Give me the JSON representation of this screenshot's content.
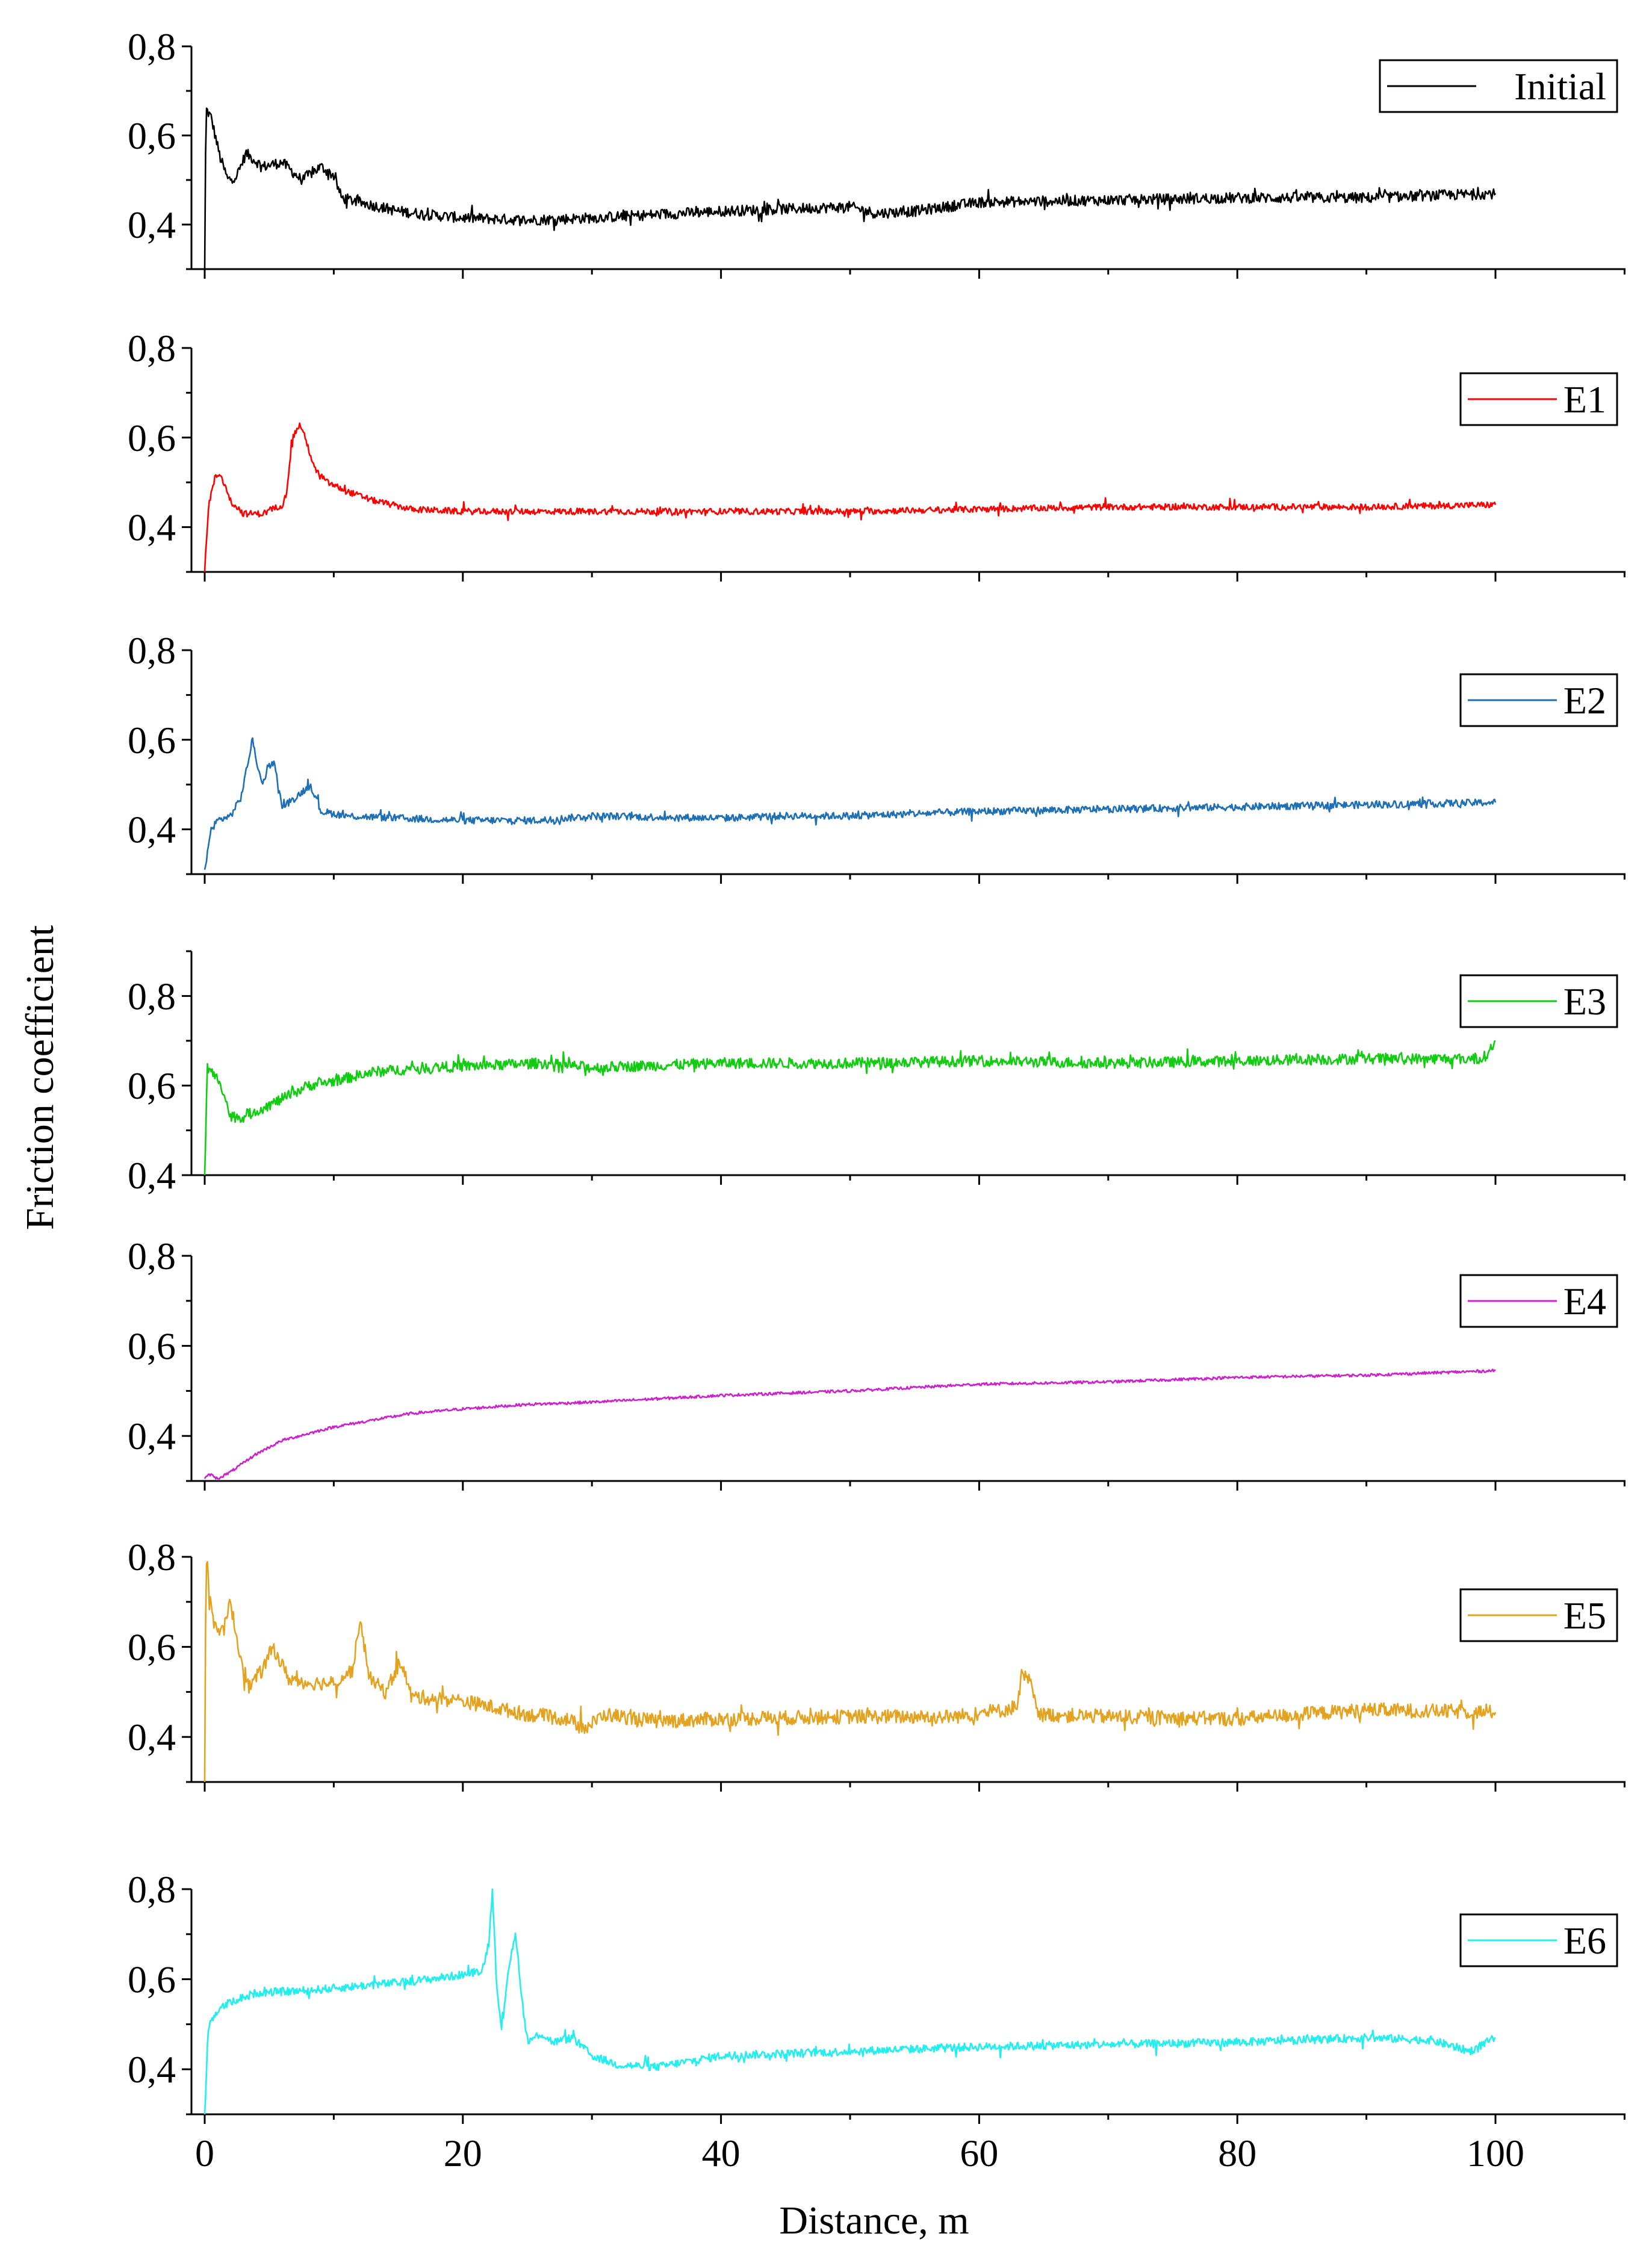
{
  "chart_data": {
    "type": "line",
    "xlabel": "Distance, m",
    "ylabel": "Friction coefficient",
    "xlim": [
      -1,
      110
    ],
    "x_ticks": [
      "0",
      "20",
      "40",
      "60",
      "80",
      "100"
    ],
    "y_tick_labels": [
      "0,4",
      "0,6",
      "0,8"
    ],
    "panels": [
      {
        "legend": "Initial",
        "color": "#000000",
        "ylim": [
          0.3,
          0.8
        ],
        "noise": 0.012,
        "spike_amp": 0.02,
        "points": [
          [
            0,
            0.3
          ],
          [
            0.1,
            0.66
          ],
          [
            0.5,
            0.64
          ],
          [
            1.2,
            0.55
          ],
          [
            1.8,
            0.5
          ],
          [
            2.5,
            0.51
          ],
          [
            3.2,
            0.56
          ],
          [
            4.5,
            0.53
          ],
          [
            6,
            0.54
          ],
          [
            7.5,
            0.5
          ],
          [
            9,
            0.53
          ],
          [
            10,
            0.51
          ],
          [
            10.6,
            0.46
          ],
          [
            12,
            0.45
          ],
          [
            15,
            0.43
          ],
          [
            18,
            0.42
          ],
          [
            20,
            0.415
          ],
          [
            25,
            0.41
          ],
          [
            30,
            0.415
          ],
          [
            40,
            0.43
          ],
          [
            50,
            0.44
          ],
          [
            52,
            0.425
          ],
          [
            55,
            0.43
          ],
          [
            60,
            0.45
          ],
          [
            70,
            0.455
          ],
          [
            80,
            0.46
          ],
          [
            90,
            0.46
          ],
          [
            100,
            0.47
          ]
        ]
      },
      {
        "legend": "E1",
        "color": "#ff0000",
        "ylim": [
          0.3,
          0.8
        ],
        "noise": 0.007,
        "spike_amp": 0.015,
        "points": [
          [
            0,
            0.3
          ],
          [
            0.3,
            0.45
          ],
          [
            0.8,
            0.51
          ],
          [
            1.2,
            0.52
          ],
          [
            2,
            0.46
          ],
          [
            3,
            0.43
          ],
          [
            4.5,
            0.43
          ],
          [
            6,
            0.45
          ],
          [
            6.3,
            0.47
          ],
          [
            6.8,
            0.6
          ],
          [
            7.4,
            0.63
          ],
          [
            8,
            0.58
          ],
          [
            8.5,
            0.53
          ],
          [
            9.5,
            0.5
          ],
          [
            11,
            0.48
          ],
          [
            13,
            0.46
          ],
          [
            16,
            0.44
          ],
          [
            20,
            0.435
          ],
          [
            30,
            0.435
          ],
          [
            40,
            0.435
          ],
          [
            50,
            0.435
          ],
          [
            60,
            0.44
          ],
          [
            70,
            0.445
          ],
          [
            80,
            0.445
          ],
          [
            90,
            0.445
          ],
          [
            100,
            0.45
          ]
        ]
      },
      {
        "legend": "E2",
        "color": "#1f6fb4",
        "ylim": [
          0.3,
          0.8
        ],
        "noise": 0.008,
        "spike_amp": 0.015,
        "points": [
          [
            0,
            0.31
          ],
          [
            0.5,
            0.4
          ],
          [
            1,
            0.42
          ],
          [
            2,
            0.43
          ],
          [
            2.8,
            0.47
          ],
          [
            3.7,
            0.6
          ],
          [
            4.4,
            0.5
          ],
          [
            5.3,
            0.56
          ],
          [
            6,
            0.45
          ],
          [
            7,
            0.47
          ],
          [
            8.2,
            0.5
          ],
          [
            9,
            0.44
          ],
          [
            11,
            0.43
          ],
          [
            15,
            0.425
          ],
          [
            20,
            0.42
          ],
          [
            26,
            0.42
          ],
          [
            30,
            0.43
          ],
          [
            40,
            0.425
          ],
          [
            45,
            0.43
          ],
          [
            50,
            0.43
          ],
          [
            60,
            0.44
          ],
          [
            70,
            0.445
          ],
          [
            80,
            0.45
          ],
          [
            90,
            0.455
          ],
          [
            100,
            0.46
          ]
        ]
      },
      {
        "legend": "E3",
        "color": "#11cc11",
        "ylim": [
          0.4,
          0.9
        ],
        "noise": 0.012,
        "spike_amp": 0.02,
        "points": [
          [
            0,
            0.4
          ],
          [
            0.2,
            0.64
          ],
          [
            0.8,
            0.62
          ],
          [
            1.2,
            0.61
          ],
          [
            2,
            0.53
          ],
          [
            3,
            0.53
          ],
          [
            4.5,
            0.55
          ],
          [
            6,
            0.57
          ],
          [
            8,
            0.6
          ],
          [
            10,
            0.61
          ],
          [
            13,
            0.63
          ],
          [
            17,
            0.64
          ],
          [
            22,
            0.645
          ],
          [
            26,
            0.65
          ],
          [
            30,
            0.64
          ],
          [
            40,
            0.65
          ],
          [
            50,
            0.65
          ],
          [
            60,
            0.655
          ],
          [
            70,
            0.65
          ],
          [
            80,
            0.655
          ],
          [
            90,
            0.66
          ],
          [
            99,
            0.66
          ],
          [
            99.6,
            0.68
          ],
          [
            100,
            0.7
          ]
        ]
      },
      {
        "legend": "E4",
        "color": "#cc22cc",
        "ylim": [
          0.3,
          0.8
        ],
        "noise": 0.003,
        "spike_amp": 0.0,
        "points": [
          [
            0,
            0.305
          ],
          [
            0.4,
            0.315
          ],
          [
            1,
            0.305
          ],
          [
            2,
            0.32
          ],
          [
            3,
            0.34
          ],
          [
            4,
            0.36
          ],
          [
            5,
            0.375
          ],
          [
            6,
            0.39
          ],
          [
            8,
            0.405
          ],
          [
            10,
            0.42
          ],
          [
            13,
            0.435
          ],
          [
            16,
            0.45
          ],
          [
            20,
            0.46
          ],
          [
            25,
            0.47
          ],
          [
            30,
            0.475
          ],
          [
            40,
            0.49
          ],
          [
            50,
            0.5
          ],
          [
            60,
            0.515
          ],
          [
            70,
            0.52
          ],
          [
            80,
            0.53
          ],
          [
            90,
            0.535
          ],
          [
            100,
            0.545
          ]
        ]
      },
      {
        "legend": "E5",
        "color": "#e3a320",
        "ylim": [
          0.3,
          0.8
        ],
        "noise": 0.016,
        "spike_amp": 0.03,
        "points": [
          [
            0,
            0.3
          ],
          [
            0.1,
            0.8
          ],
          [
            0.6,
            0.66
          ],
          [
            1.4,
            0.63
          ],
          [
            2,
            0.7
          ],
          [
            2.6,
            0.6
          ],
          [
            3.4,
            0.51
          ],
          [
            4.5,
            0.55
          ],
          [
            5.3,
            0.6
          ],
          [
            6.5,
            0.53
          ],
          [
            8,
            0.52
          ],
          [
            10,
            0.52
          ],
          [
            11.5,
            0.55
          ],
          [
            12,
            0.66
          ],
          [
            12.8,
            0.53
          ],
          [
            14,
            0.5
          ],
          [
            15.2,
            0.57
          ],
          [
            16,
            0.49
          ],
          [
            20,
            0.48
          ],
          [
            25,
            0.45
          ],
          [
            28,
            0.44
          ],
          [
            29.5,
            0.42
          ],
          [
            31,
            0.45
          ],
          [
            35,
            0.435
          ],
          [
            40,
            0.44
          ],
          [
            50,
            0.445
          ],
          [
            58,
            0.445
          ],
          [
            62,
            0.46
          ],
          [
            63,
            0.47
          ],
          [
            63.3,
            0.54
          ],
          [
            64,
            0.52
          ],
          [
            64.5,
            0.45
          ],
          [
            70,
            0.445
          ],
          [
            80,
            0.44
          ],
          [
            90,
            0.46
          ],
          [
            100,
            0.455
          ]
        ]
      },
      {
        "legend": "E6",
        "color": "#22eeee",
        "ylim": [
          0.3,
          0.8
        ],
        "noise": 0.009,
        "spike_amp": 0.02,
        "points": [
          [
            0,
            0.3
          ],
          [
            0.3,
            0.5
          ],
          [
            1,
            0.53
          ],
          [
            2,
            0.55
          ],
          [
            4,
            0.57
          ],
          [
            8,
            0.575
          ],
          [
            12,
            0.585
          ],
          [
            16,
            0.595
          ],
          [
            20,
            0.61
          ],
          [
            21.5,
            0.62
          ],
          [
            22,
            0.68
          ],
          [
            22.3,
            0.8
          ],
          [
            22.6,
            0.6
          ],
          [
            23,
            0.48
          ],
          [
            23.5,
            0.62
          ],
          [
            24.1,
            0.7
          ],
          [
            24.6,
            0.55
          ],
          [
            25,
            0.46
          ],
          [
            26,
            0.48
          ],
          [
            27,
            0.46
          ],
          [
            28.5,
            0.47
          ],
          [
            30,
            0.43
          ],
          [
            32,
            0.41
          ],
          [
            35,
            0.405
          ],
          [
            40,
            0.43
          ],
          [
            50,
            0.44
          ],
          [
            60,
            0.45
          ],
          [
            70,
            0.455
          ],
          [
            80,
            0.46
          ],
          [
            90,
            0.47
          ],
          [
            95,
            0.465
          ],
          [
            98,
            0.44
          ],
          [
            100,
            0.47
          ]
        ]
      }
    ]
  }
}
